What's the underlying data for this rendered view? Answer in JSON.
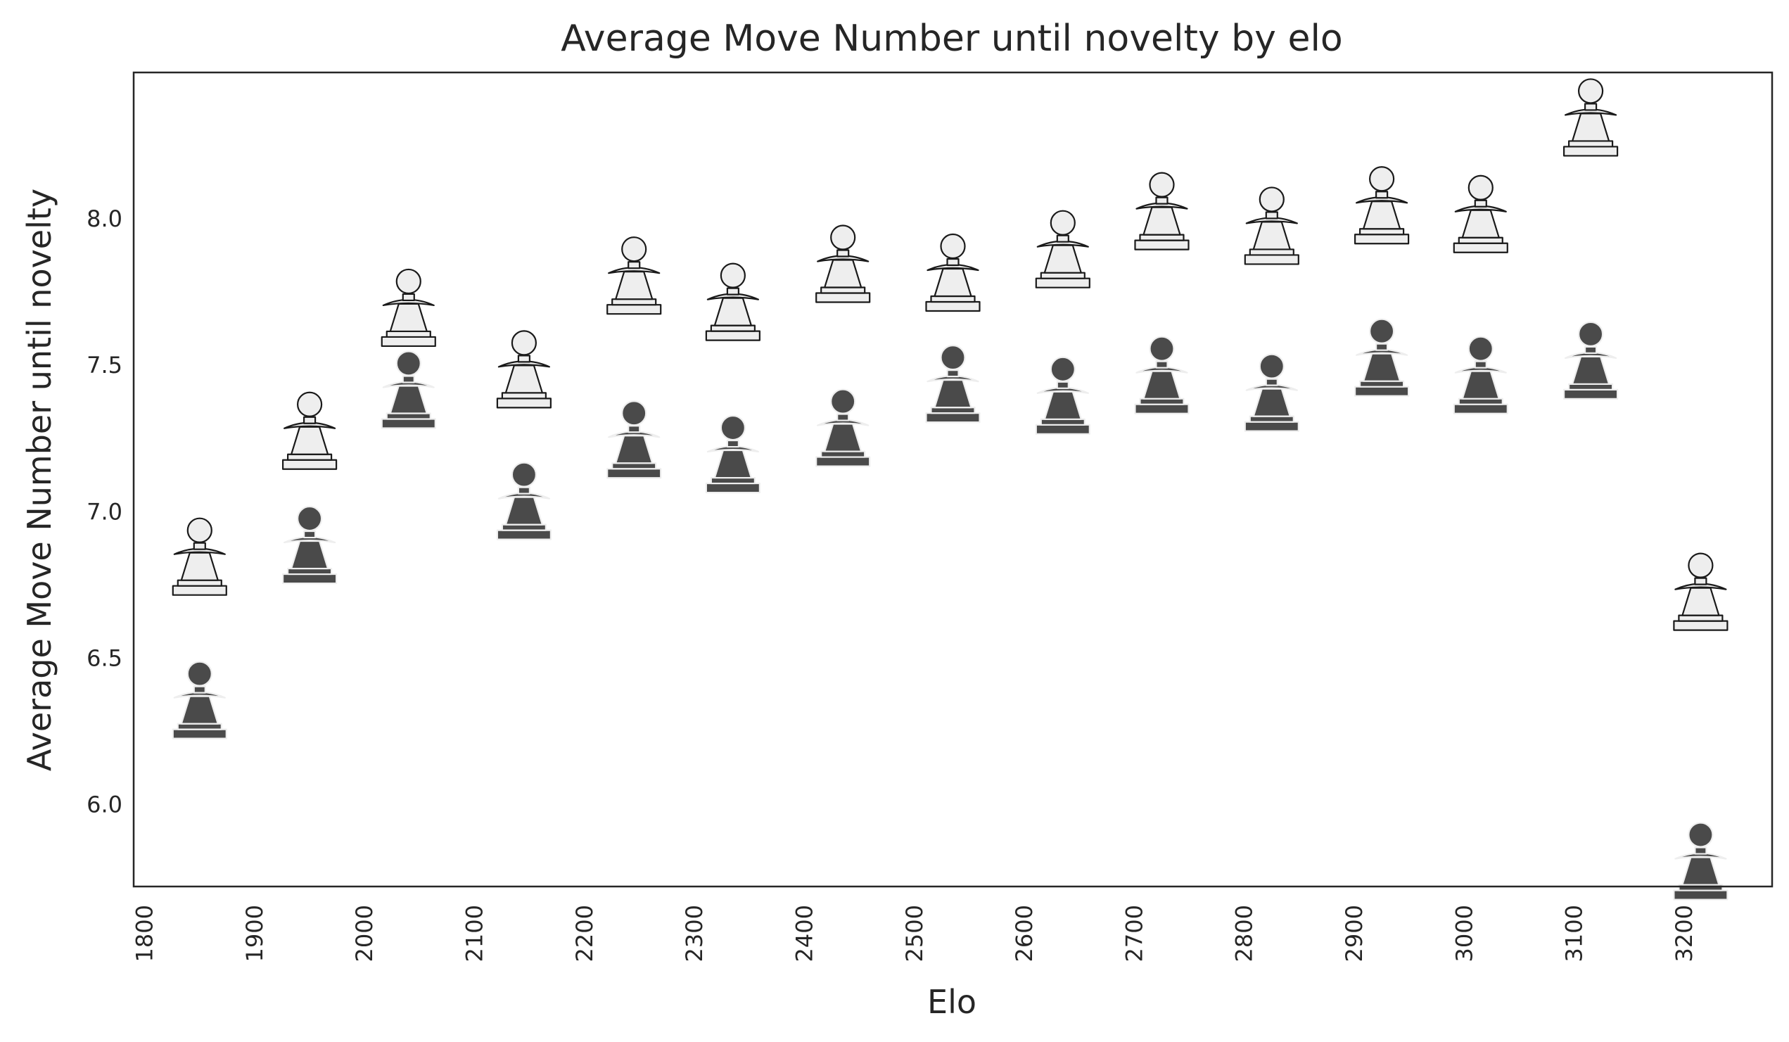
{
  "chart_data": {
    "type": "scatter",
    "title": "Average Move Number until novelty by elo",
    "xlabel": "Elo",
    "ylabel": "Average Move Number until novelty",
    "x_ticks": [
      "1800",
      "1900",
      "2000",
      "2100",
      "2200",
      "2300",
      "2400",
      "2500",
      "2600",
      "2700",
      "2800",
      "2900",
      "3000",
      "3100",
      "3200"
    ],
    "y_ticks": [
      "6.0",
      "6.5",
      "7.0",
      "7.5",
      "8.0"
    ],
    "xlim": [
      1790,
      3280
    ],
    "ylim": [
      5.72,
      8.5
    ],
    "grid": false,
    "marker": "chess-pawn-icon",
    "series": [
      {
        "color": "#eeeeee",
        "outline": "#1a1a1a",
        "x": [
          1850,
          1950,
          2040,
          2145,
          2245,
          2335,
          2435,
          2535,
          2635,
          2725,
          2825,
          2925,
          3015,
          3115,
          3215
        ],
        "y": [
          6.85,
          7.28,
          7.7,
          7.49,
          7.81,
          7.72,
          7.85,
          7.82,
          7.9,
          8.03,
          7.98,
          8.05,
          8.02,
          8.35,
          6.73
        ]
      },
      {
        "color": "#4a4a4a",
        "outline": "#eeeeee",
        "x": [
          1850,
          1950,
          2040,
          2145,
          2245,
          2335,
          2435,
          2535,
          2635,
          2725,
          2825,
          2925,
          3015,
          3115,
          3215
        ],
        "y": [
          6.36,
          6.89,
          7.42,
          7.04,
          7.25,
          7.2,
          7.29,
          7.44,
          7.4,
          7.47,
          7.41,
          7.53,
          7.47,
          7.52,
          5.81
        ]
      }
    ]
  }
}
